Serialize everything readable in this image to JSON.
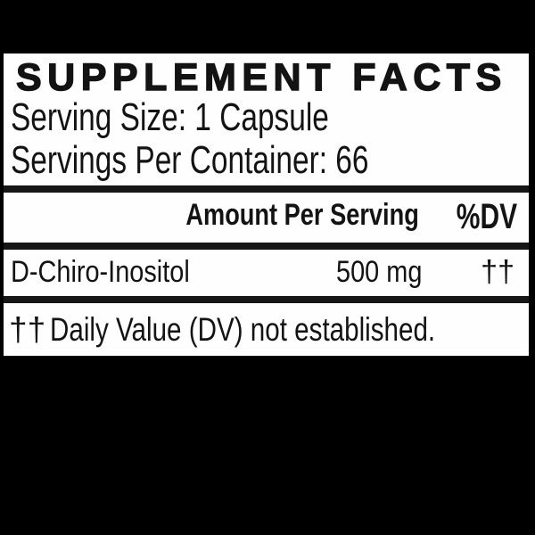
{
  "colors": {
    "background": "#000000",
    "panel": "#fefefe",
    "ink": "#131313"
  },
  "label": {
    "title": "SUPPLEMENT FACTS",
    "serving_size": "Serving Size: 1 Capsule",
    "servings_per_container": "Servings Per Container: 66",
    "columns": {
      "amount": "Amount Per Serving",
      "dv": "%DV"
    },
    "rows": [
      {
        "name": "D-Chiro-Inositol",
        "amount": "500 mg",
        "dv": "††"
      }
    ],
    "footnote": {
      "symbol": "††",
      "text": "Daily Value (DV) not established."
    }
  }
}
